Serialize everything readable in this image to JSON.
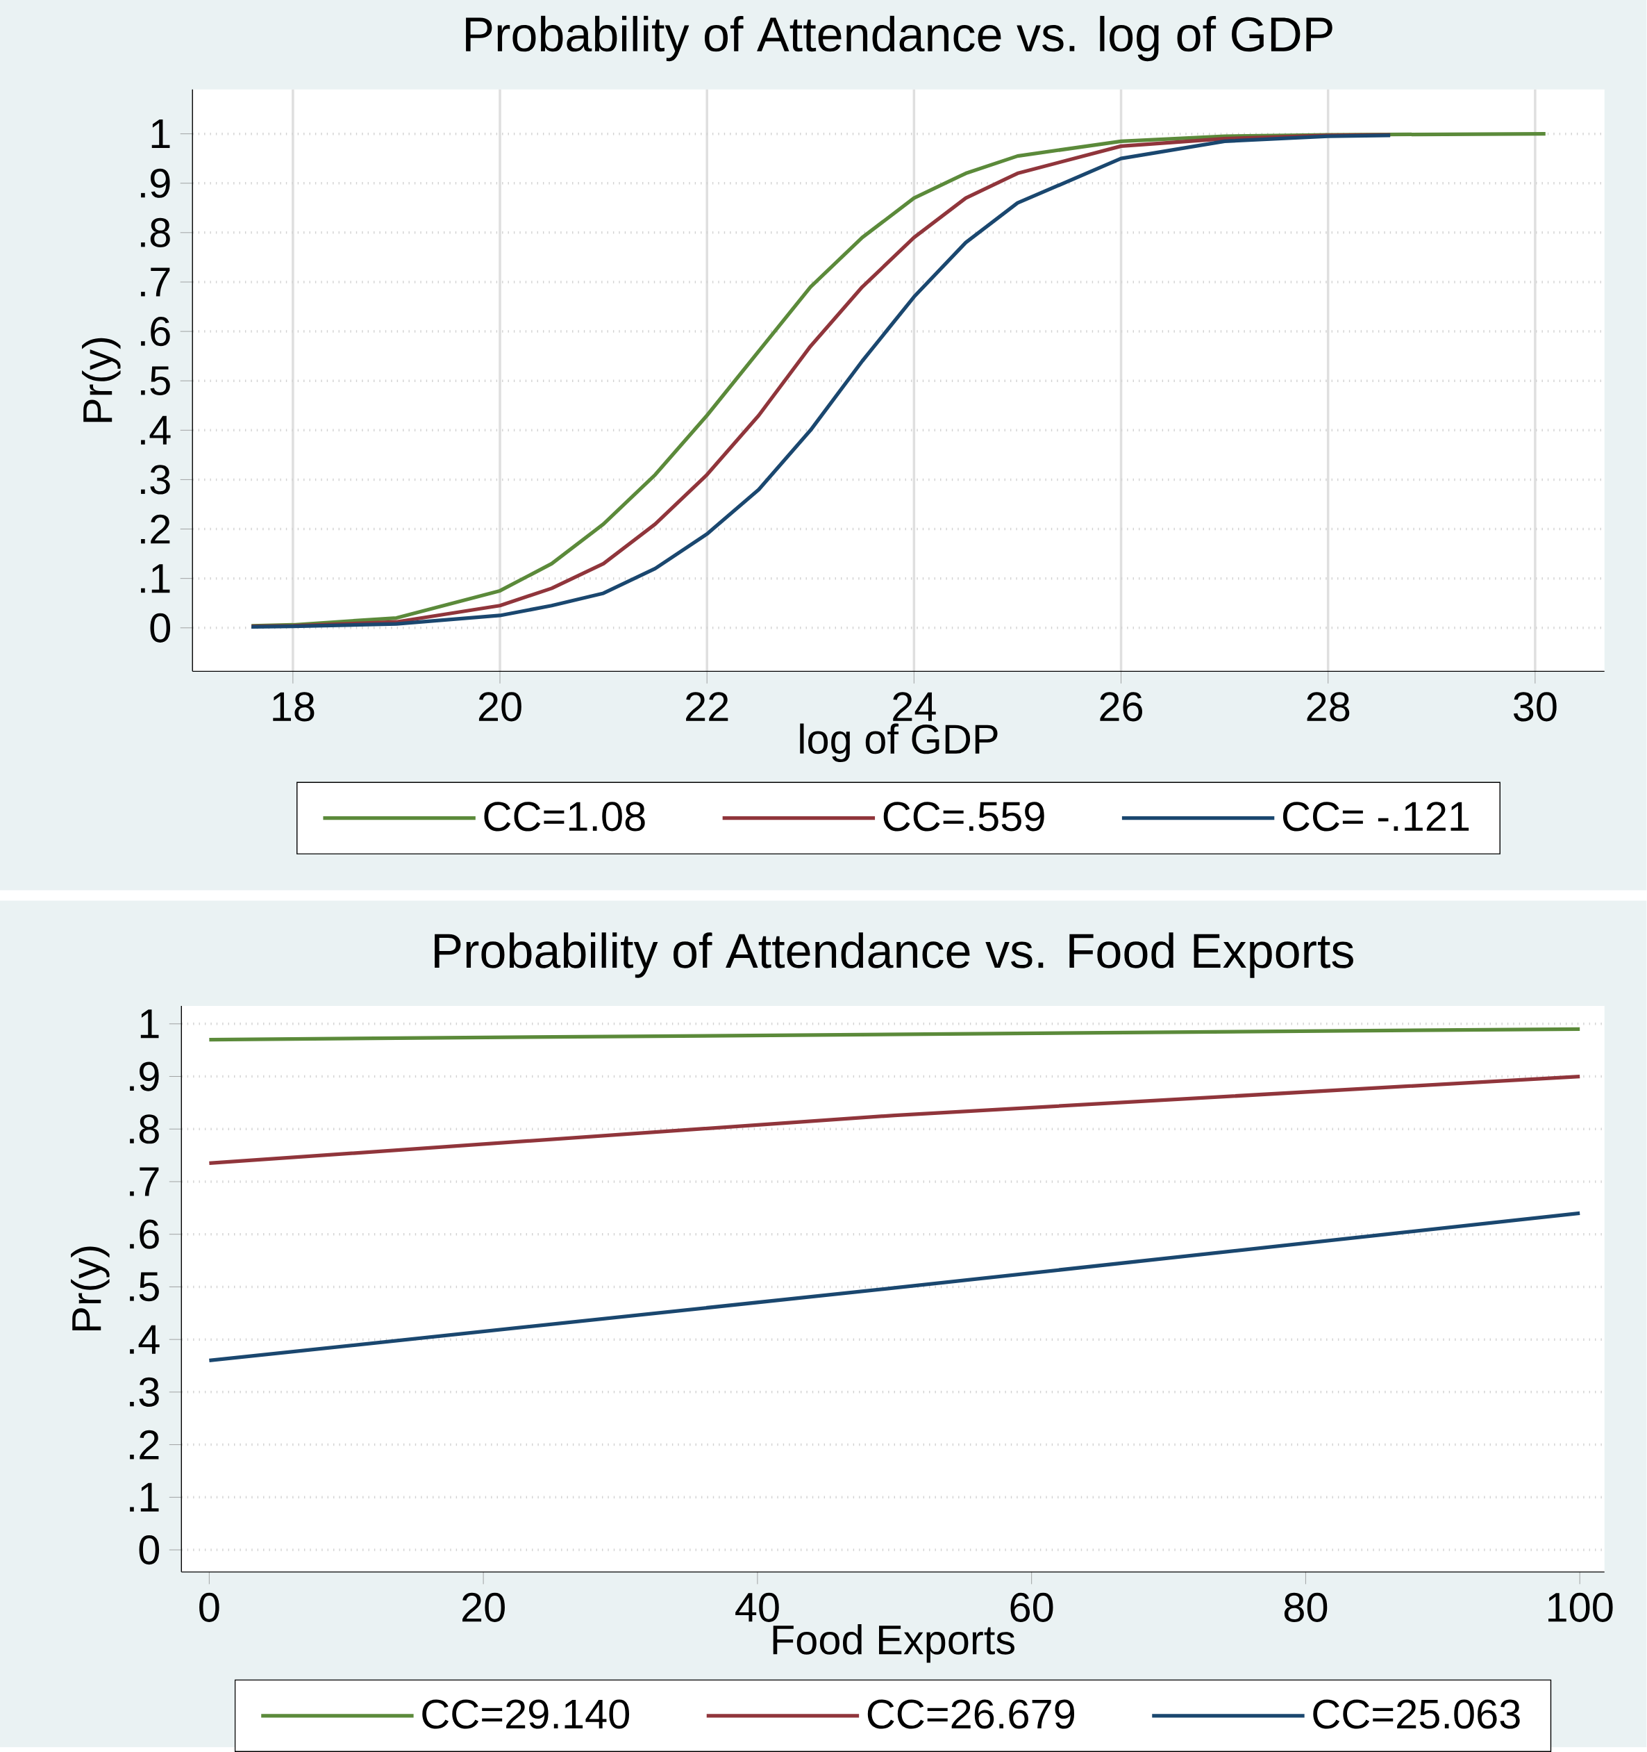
{
  "chart_data": [
    {
      "type": "line",
      "title": "Probability of Attendance vs. log of GDP",
      "xlabel": "log of GDP",
      "ylabel": "Pr(y)",
      "xlim": [
        17.03,
        30.67
      ],
      "ylim": [
        -0.088,
        1.09
      ],
      "xticks": [
        18,
        20,
        22,
        24,
        26,
        28,
        30
      ],
      "yticks": [
        0,
        {
          "value": 0.1,
          "label": ".1"
        },
        {
          "value": 0.2,
          "label": ".2"
        },
        {
          "value": 0.3,
          "label": ".3"
        },
        {
          "value": 0.4,
          "label": ".4"
        },
        {
          "value": 0.5,
          "label": ".5"
        },
        {
          "value": 0.6,
          "label": ".6"
        },
        {
          "value": 0.7,
          "label": ".7"
        },
        {
          "value": 0.8,
          "label": ".8"
        },
        {
          "value": 0.9,
          "label": ".9"
        },
        1
      ],
      "grid": true,
      "legend": "bottom",
      "series": [
        {
          "name": "CC=1.08",
          "color": "#5b8a3a",
          "x": [
            17.6,
            18,
            19,
            20,
            20.5,
            21,
            21.5,
            22,
            22.5,
            23,
            23.5,
            24,
            24.5,
            25,
            26,
            27,
            28,
            30.1
          ],
          "values": [
            0.004,
            0.006,
            0.02,
            0.075,
            0.13,
            0.21,
            0.31,
            0.43,
            0.56,
            0.69,
            0.79,
            0.87,
            0.92,
            0.955,
            0.985,
            0.995,
            0.998,
            1
          ]
        },
        {
          "name": "CC=.559",
          "color": "#90353b",
          "x": [
            17.6,
            18,
            19,
            20,
            20.5,
            21,
            21.5,
            22,
            22.5,
            23,
            23.5,
            24,
            24.5,
            25,
            26,
            27,
            28,
            28.6
          ],
          "values": [
            0.003,
            0.004,
            0.012,
            0.045,
            0.08,
            0.13,
            0.21,
            0.31,
            0.43,
            0.57,
            0.69,
            0.79,
            0.87,
            0.92,
            0.975,
            0.99,
            0.997,
            0.998
          ]
        },
        {
          "name": "CC= -.121",
          "color": "#1a476f",
          "x": [
            17.6,
            18,
            19,
            20,
            20.5,
            21,
            21.5,
            22,
            22.5,
            23,
            23.5,
            24,
            24.5,
            25,
            26,
            27,
            28,
            28.6
          ],
          "values": [
            0.002,
            0.003,
            0.008,
            0.025,
            0.045,
            0.07,
            0.12,
            0.19,
            0.28,
            0.4,
            0.54,
            0.67,
            0.78,
            0.86,
            0.95,
            0.985,
            0.995,
            0.997
          ]
        }
      ]
    },
    {
      "type": "line",
      "title": "Probability of Attendance vs. Food Exports",
      "xlabel": "Food Exports",
      "ylabel": "Pr(y)",
      "xlim": [
        -2.03,
        101.8
      ],
      "ylim": [
        -0.042,
        1.034
      ],
      "xticks": [
        0,
        20,
        40,
        60,
        80,
        100
      ],
      "yticks": [
        0,
        {
          "value": 0.1,
          "label": ".1"
        },
        {
          "value": 0.2,
          "label": ".2"
        },
        {
          "value": 0.3,
          "label": ".3"
        },
        {
          "value": 0.4,
          "label": ".4"
        },
        {
          "value": 0.5,
          "label": ".5"
        },
        {
          "value": 0.6,
          "label": ".6"
        },
        {
          "value": 0.7,
          "label": ".7"
        },
        {
          "value": 0.8,
          "label": ".8"
        },
        {
          "value": 0.9,
          "label": ".9"
        },
        1
      ],
      "grid": "y",
      "legend": "bottom",
      "series": [
        {
          "name": "CC=29.140",
          "color": "#5b8a3a",
          "x": [
            0,
            50,
            100
          ],
          "values": [
            0.97,
            0.98,
            0.99
          ]
        },
        {
          "name": "CC=26.679",
          "color": "#90353b",
          "x": [
            0,
            50,
            100
          ],
          "values": [
            0.735,
            0.826,
            0.9
          ]
        },
        {
          "name": "CC=25.063",
          "color": "#1a476f",
          "x": [
            0,
            50,
            100
          ],
          "values": [
            0.36,
            0.498,
            0.64
          ]
        }
      ]
    }
  ]
}
